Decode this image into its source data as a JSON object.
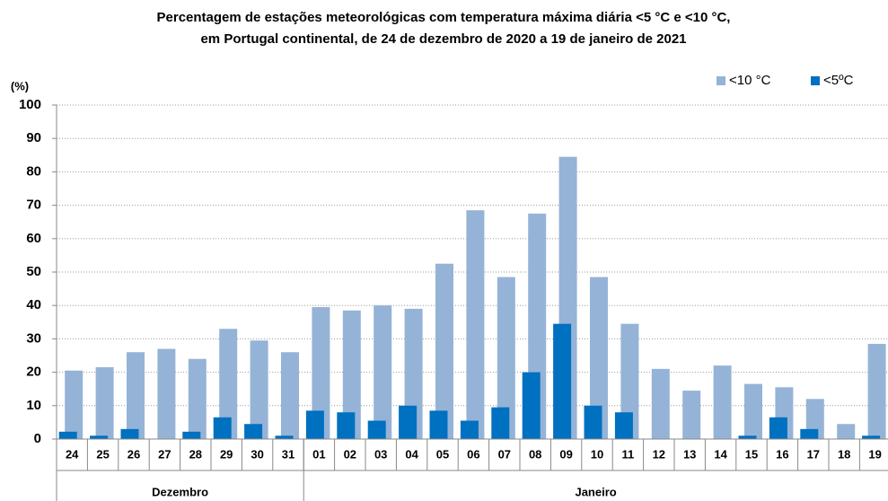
{
  "chart_data": {
    "type": "bar",
    "title": [
      "Percentagem de estações meteorológicas com temperatura máxima diária <5 °C e <10 °C,",
      "em Portugal continental, de 24 de dezembro de 2020 a 19 de janeiro de 2021"
    ],
    "y_label": "(%)",
    "categories": [
      "24",
      "25",
      "26",
      "27",
      "28",
      "29",
      "30",
      "31",
      "01",
      "02",
      "03",
      "04",
      "05",
      "06",
      "07",
      "08",
      "09",
      "10",
      "11",
      "12",
      "13",
      "14",
      "15",
      "16",
      "17",
      "18",
      "19"
    ],
    "x_groups": [
      {
        "label": "Dezembro",
        "start": "24",
        "end": "31"
      },
      {
        "label": "Janeiro",
        "start": "01",
        "end": "19"
      }
    ],
    "series": [
      {
        "name": "<10 °C",
        "color": "#95b3d7",
        "values": [
          20.5,
          21.5,
          26,
          27,
          24,
          33,
          29.5,
          26,
          39.5,
          38.5,
          40,
          39,
          52.5,
          68.5,
          48.5,
          67.5,
          84.5,
          48.5,
          34.5,
          21,
          14.5,
          22,
          16.5,
          15.5,
          12,
          4.5,
          28.5
        ]
      },
      {
        "name": "<5ºC",
        "color": "#0070c0",
        "values": [
          2.2,
          1,
          3,
          0,
          2.2,
          6.5,
          4.5,
          1,
          8.5,
          8,
          5.5,
          10,
          8.5,
          5.5,
          9.5,
          20,
          34.5,
          10,
          8,
          0,
          0,
          0,
          1,
          6.5,
          3,
          0,
          1
        ]
      }
    ],
    "ylim": [
      0,
      100
    ],
    "yticks": [
      0,
      10,
      20,
      30,
      40,
      50,
      60,
      70,
      80,
      90,
      100
    ],
    "grid": true,
    "legend": "top-right"
  }
}
